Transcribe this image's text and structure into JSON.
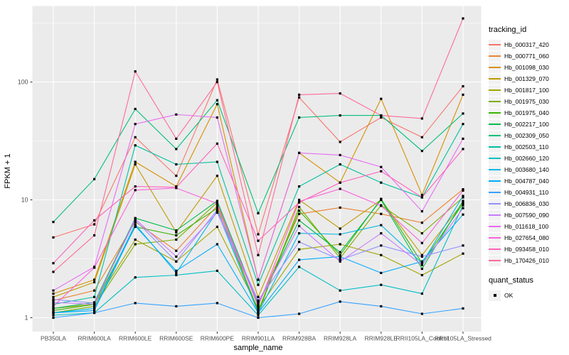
{
  "figure": {
    "x_axis_title": "sample_name",
    "y_axis_title": "FPKM + 1"
  },
  "chart_data": {
    "type": "line",
    "title": "",
    "x_axis_label": "sample_name",
    "y_axis_label": "FPKM + 1",
    "y_scale": "log10",
    "ylim": [
      0.76,
      430
    ],
    "y_tick_labels": [
      "1",
      "10",
      "100"
    ],
    "y_major_breaks": [
      1,
      10,
      100
    ],
    "y_minor_breaks": [
      3.162,
      31.623,
      316.228
    ],
    "grid": true,
    "legend_position": "right",
    "legend_title": "tracking_id",
    "point_legend_title": "quant_status",
    "point_legend_label": "OK",
    "panel_background": "#EBEBEB",
    "gridline_color": "#FFFFFF",
    "tick_label_color": "#4D4D4D",
    "point_color": "#000000",
    "point_shape": "square",
    "categories": [
      "PB350LA",
      "RRIM600LA",
      "RRIM600LE",
      "RRIM600SE",
      "RRIM600PE",
      "RRIM901LA",
      "RRIM928BA",
      "RRIM928LA",
      "RRIM928LE",
      "RRII105LA_Control",
      "RRII105LA_Stressed"
    ],
    "series": [
      {
        "name": "Hb_000317_420",
        "color": "#F8766D",
        "values": [
          4.8,
          6.2,
          34,
          16,
          105,
          5.1,
          74,
          31,
          50,
          34,
          92
        ]
      },
      {
        "name": "Hb_000771_060",
        "color": "#EA8331",
        "values": [
          1.4,
          1.7,
          6.5,
          3.7,
          8.9,
          1.3,
          7.6,
          8.6,
          7.6,
          6.4,
          12.3
        ]
      },
      {
        "name": "Hb_001098_030",
        "color": "#D89000",
        "values": [
          1.6,
          2.1,
          21,
          13,
          65,
          2.1,
          25,
          14,
          72,
          11,
          78
        ]
      },
      {
        "name": "Hb_001329_070",
        "color": "#C09B00",
        "values": [
          1.5,
          2.0,
          20,
          5.3,
          16,
          1.5,
          10,
          5.7,
          10,
          3.4,
          9.5
        ]
      },
      {
        "name": "Hb_001817_100",
        "color": "#A3A500",
        "values": [
          1.2,
          1.3,
          4.6,
          3.0,
          5.9,
          1.2,
          3.8,
          4.2,
          3.4,
          2.3,
          3.5
        ]
      },
      {
        "name": "Hb_001975_030",
        "color": "#7CAE00",
        "values": [
          1.1,
          1.25,
          4.2,
          4.6,
          9.5,
          1.1,
          8.7,
          3.2,
          9.0,
          5.2,
          10.5
        ]
      },
      {
        "name": "Hb_001975_040",
        "color": "#39B600",
        "values": [
          1.15,
          1.3,
          5.9,
          5.0,
          8.5,
          1.15,
          8.1,
          3.4,
          10.2,
          2.9,
          9.3
        ]
      },
      {
        "name": "Hb_002217_100",
        "color": "#00BB4E",
        "values": [
          1.2,
          1.35,
          7.0,
          5.5,
          9.8,
          1.3,
          6.7,
          3.6,
          10.0,
          2.6,
          9.8
        ]
      },
      {
        "name": "Hb_002309_050",
        "color": "#00C079",
        "values": [
          6.5,
          15,
          59,
          27,
          70,
          7.7,
          50,
          52,
          52,
          26,
          54
        ]
      },
      {
        "name": "Hb_002503_110",
        "color": "#00C19F",
        "values": [
          1.3,
          1.5,
          29,
          20,
          21,
          1.9,
          13,
          20,
          14,
          10.5,
          44
        ]
      },
      {
        "name": "Hb_002660_120",
        "color": "#00BFC4",
        "values": [
          1.05,
          1.1,
          2.2,
          2.3,
          2.5,
          1.05,
          2.7,
          1.7,
          1.9,
          1.6,
          9.0
        ]
      },
      {
        "name": "Hb_003680_140",
        "color": "#00B8E7",
        "values": [
          1.1,
          1.2,
          6.2,
          2.4,
          8.0,
          1.1,
          5.2,
          5.1,
          6.1,
          2.9,
          10.8
        ]
      },
      {
        "name": "Hb_004787_040",
        "color": "#00ACFC",
        "values": [
          1.1,
          1.15,
          6.0,
          2.5,
          4.2,
          1.1,
          3.1,
          3.3,
          2.4,
          3.0,
          7.5
        ]
      },
      {
        "name": "Hb_004931_110",
        "color": "#35A2FF",
        "values": [
          1.0,
          1.1,
          1.33,
          1.25,
          1.33,
          1.0,
          1.08,
          1.37,
          1.25,
          1.08,
          1.2
        ]
      },
      {
        "name": "Hb_006836_030",
        "color": "#9590FF",
        "values": [
          1.43,
          1.33,
          6.7,
          3.0,
          8.2,
          1.4,
          4.4,
          3.1,
          4.1,
          3.3,
          4.1
        ]
      },
      {
        "name": "Hb_007590_090",
        "color": "#C77CFF",
        "values": [
          1.35,
          1.3,
          6.9,
          3.3,
          7.8,
          1.35,
          6.0,
          3.0,
          5.2,
          2.8,
          8.5
        ]
      },
      {
        "name": "Hb_011618_100",
        "color": "#E76BF3",
        "values": [
          1.7,
          2.7,
          44,
          53,
          50,
          2.1,
          25,
          24,
          19,
          8.0,
          33
        ]
      },
      {
        "name": "Hb_027654_080",
        "color": "#FA62DB",
        "values": [
          1.25,
          2.66,
          12.1,
          12.6,
          9.3,
          1.25,
          9.7,
          12.4,
          8.9,
          4.3,
          12
        ]
      },
      {
        "name": "Hb_093458_010",
        "color": "#FF62BC",
        "values": [
          2.9,
          6.7,
          13,
          12.8,
          30,
          4.5,
          9.5,
          14,
          17.5,
          10.5,
          27
        ]
      },
      {
        "name": "Hb_170426_010",
        "color": "#FF6A98",
        "values": [
          2.45,
          5.0,
          123,
          33,
          100,
          3.4,
          78,
          80,
          52,
          49,
          346
        ]
      }
    ]
  }
}
